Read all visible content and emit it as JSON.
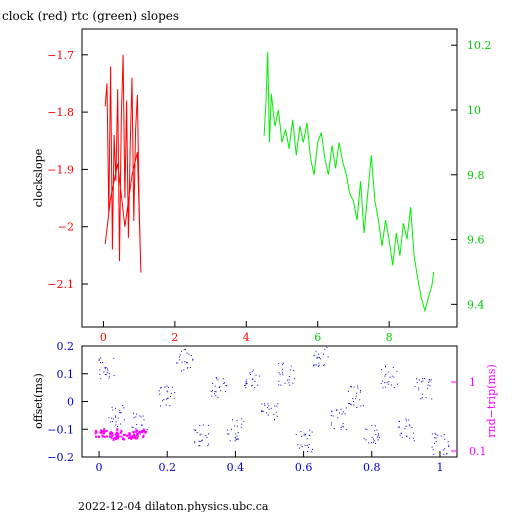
{
  "chart_data": [
    {
      "type": "line",
      "title": "clock (red) rtc (green) slopes",
      "ylabel_left": "clockslope",
      "x_ticks": [
        "0",
        "2",
        "4",
        "6",
        "8"
      ],
      "xlim": [
        -0.6,
        9.9
      ],
      "ylim_left": [
        -2.175,
        -1.655
      ],
      "ylim_right": [
        9.33,
        10.25
      ],
      "y_ticks_left": [
        "-1.7",
        "-1.8",
        "-1.9",
        "-2",
        "-2.1"
      ],
      "y_ticks_right": [
        "10.2",
        "10",
        "9.8",
        "9.6",
        "9.4"
      ],
      "series": [
        {
          "color": "#ff0000",
          "axis": "left",
          "points": [
            [
              0.05,
              -1.79
            ],
            [
              0.1,
              -1.75
            ],
            [
              0.15,
              -1.98
            ],
            [
              0.2,
              -1.72
            ],
            [
              0.25,
              -2.04
            ],
            [
              0.3,
              -1.84
            ],
            [
              0.35,
              -1.92
            ],
            [
              0.4,
              -1.76
            ],
            [
              0.45,
              -2.06
            ],
            [
              0.5,
              -1.81
            ],
            [
              0.55,
              -1.7
            ],
            [
              0.6,
              -1.95
            ],
            [
              0.65,
              -1.78
            ],
            [
              0.7,
              -2.02
            ],
            [
              0.75,
              -1.86
            ],
            [
              0.8,
              -1.74
            ],
            [
              0.85,
              -1.99
            ],
            [
              0.9,
              -1.83
            ],
            [
              0.95,
              -1.77
            ],
            [
              1.0,
              -1.96
            ],
            [
              1.05,
              -2.08
            ],
            [
              0.95,
              -1.87
            ],
            [
              0.8,
              -1.91
            ],
            [
              0.6,
              -2.0
            ],
            [
              0.4,
              -1.89
            ],
            [
              0.2,
              -1.95
            ],
            [
              0.05,
              -2.03
            ]
          ]
        },
        {
          "color": "#00ee00",
          "axis": "right",
          "points": [
            [
              4.5,
              9.92
            ],
            [
              4.55,
              10.02
            ],
            [
              4.6,
              10.18
            ],
            [
              4.65,
              9.9
            ],
            [
              4.7,
              10.05
            ],
            [
              4.8,
              9.95
            ],
            [
              4.9,
              10.0
            ],
            [
              5.0,
              9.9
            ],
            [
              5.1,
              9.94
            ],
            [
              5.2,
              9.88
            ],
            [
              5.3,
              9.97
            ],
            [
              5.4,
              9.86
            ],
            [
              5.5,
              9.95
            ],
            [
              5.6,
              9.9
            ],
            [
              5.7,
              9.96
            ],
            [
              5.8,
              9.85
            ],
            [
              5.9,
              9.8
            ],
            [
              6.0,
              9.9
            ],
            [
              6.1,
              9.93
            ],
            [
              6.2,
              9.85
            ],
            [
              6.3,
              9.8
            ],
            [
              6.4,
              9.89
            ],
            [
              6.5,
              9.82
            ],
            [
              6.6,
              9.9
            ],
            [
              6.7,
              9.84
            ],
            [
              6.8,
              9.8
            ],
            [
              6.9,
              9.74
            ],
            [
              7.0,
              9.72
            ],
            [
              7.1,
              9.66
            ],
            [
              7.2,
              9.78
            ],
            [
              7.3,
              9.62
            ],
            [
              7.4,
              9.74
            ],
            [
              7.5,
              9.86
            ],
            [
              7.6,
              9.72
            ],
            [
              7.7,
              9.66
            ],
            [
              7.8,
              9.58
            ],
            [
              7.9,
              9.66
            ],
            [
              8.0,
              9.6
            ],
            [
              8.1,
              9.52
            ],
            [
              8.2,
              9.62
            ],
            [
              8.3,
              9.55
            ],
            [
              8.4,
              9.65
            ],
            [
              8.5,
              9.6
            ],
            [
              8.6,
              9.7
            ],
            [
              8.7,
              9.55
            ],
            [
              8.8,
              9.48
            ],
            [
              8.9,
              9.42
            ],
            [
              9.0,
              9.38
            ],
            [
              9.1,
              9.42
            ],
            [
              9.2,
              9.46
            ],
            [
              9.25,
              9.5
            ]
          ]
        }
      ]
    },
    {
      "type": "scatter",
      "xlabel": "",
      "ylabel_left": "offset(ms)",
      "ylabel_right": "rnd−trip(ms)",
      "xlim": [
        -0.05,
        1.05
      ],
      "ylim_left": [
        -0.2,
        0.2
      ],
      "x_ticks": [
        "0",
        "0.2",
        "0.4",
        "0.6",
        "0.8",
        "1"
      ],
      "y_ticks_left": [
        "0.2",
        "0.1",
        "0",
        "-0.1",
        "-0.2"
      ],
      "y_ticks_right": [
        "1",
        "0.1"
      ],
      "series": [
        {
          "color": "#0000cc",
          "marker": "dot",
          "description_points": [
            [
              0.02,
              0.12
            ],
            [
              0.05,
              -0.05
            ],
            [
              0.12,
              -0.08
            ],
            [
              0.2,
              0.02
            ],
            [
              0.25,
              0.15
            ],
            [
              0.3,
              -0.12
            ],
            [
              0.35,
              0.05
            ],
            [
              0.4,
              -0.1
            ],
            [
              0.45,
              0.08
            ],
            [
              0.5,
              -0.03
            ],
            [
              0.55,
              0.1
            ],
            [
              0.6,
              -0.14
            ],
            [
              0.65,
              0.16
            ],
            [
              0.7,
              -0.06
            ],
            [
              0.75,
              0.02
            ],
            [
              0.8,
              -0.12
            ],
            [
              0.85,
              0.09
            ],
            [
              0.9,
              -0.1
            ],
            [
              0.95,
              0.05
            ],
            [
              1.0,
              -0.15
            ]
          ]
        },
        {
          "color": "#ff00ff",
          "marker": "dot",
          "points": [
            [
              0.0,
              0.11
            ],
            [
              0.02,
              0.115
            ],
            [
              0.04,
              0.12
            ],
            [
              0.06,
              0.11
            ],
            [
              0.08,
              0.12
            ],
            [
              0.1,
              0.115
            ],
            [
              0.12,
              0.11
            ]
          ]
        }
      ]
    }
  ],
  "footer": "2022-12-04  dilaton.physics.ubc.ca"
}
